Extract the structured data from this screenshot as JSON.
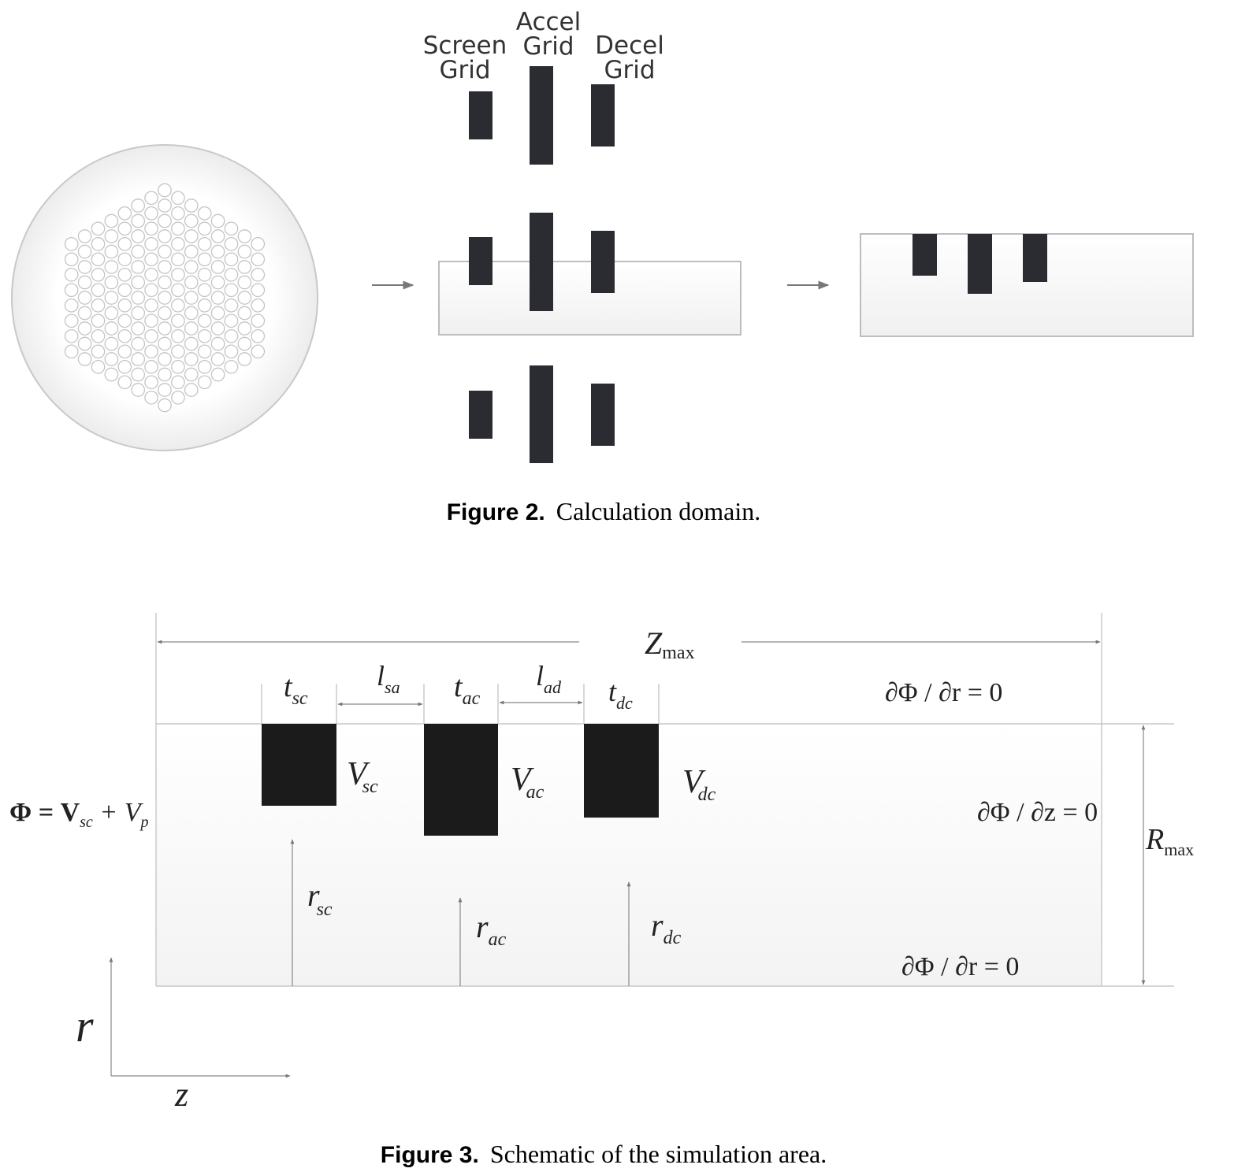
{
  "figure2": {
    "grid_labels": {
      "screen_line1": "Screen",
      "screen_line2": "Grid",
      "accel_line1": "Accel",
      "accel_line2": "Grid",
      "decel_line1": "Decel",
      "decel_line2": "Grid"
    },
    "caption_label": "Figure 2.",
    "caption_text": "Calculation domain."
  },
  "figure3": {
    "labels": {
      "zmax_main": "Z",
      "zmax_sub": "max",
      "rmax_main": "R",
      "rmax_sub": "max",
      "tsc_main": "t",
      "tsc_sub": "sc",
      "lsa_main": "l",
      "lsa_sub": "sa",
      "tac_main": "t",
      "tac_sub": "ac",
      "lad_main": "l",
      "lad_sub": "ad",
      "tdc_main": "t",
      "tdc_sub": "dc",
      "vsc_main": "V",
      "vsc_sub": "sc",
      "vac_main": "V",
      "vac_sub": "ac",
      "vdc_main": "V",
      "vdc_sub": "dc",
      "rsc_main": "r",
      "rsc_sub": "sc",
      "rac_main": "r",
      "rac_sub": "ac",
      "rdc_main": "r",
      "rdc_sub": "dc",
      "axis_r": "r",
      "axis_z": "z"
    },
    "boundary_conditions": {
      "top": "∂Φ / ∂r = 0",
      "right": "∂Φ / ∂z = 0",
      "bottom": "∂Φ / ∂r = 0",
      "left_phi": "Φ = V",
      "left_sub1": "sc",
      "left_plus": " + V",
      "left_sub2": "p"
    },
    "caption_label": "Figure 3.",
    "caption_text": "Schematic of the simulation area."
  }
}
